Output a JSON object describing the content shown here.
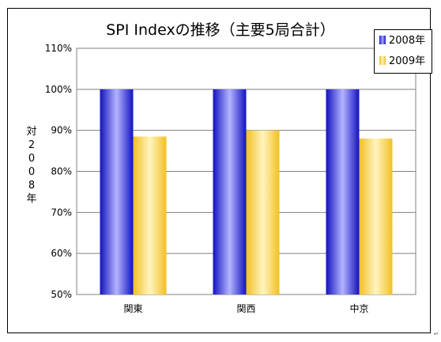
{
  "chart_data": {
    "type": "bar",
    "title": "SPI Indexの推移（主要5局合計）",
    "ylabel": "対2008年",
    "categories": [
      "関東",
      "関西",
      "中京"
    ],
    "series": [
      {
        "name": "2008年",
        "values": [
          100,
          100,
          100
        ],
        "color": "#2a2af0"
      },
      {
        "name": "2009年",
        "values": [
          88.5,
          90,
          88
        ],
        "color": "#ffd94a"
      }
    ],
    "ylim": [
      50,
      110
    ],
    "yticks": [
      50,
      60,
      70,
      80,
      90,
      100,
      110
    ],
    "ytick_labels": [
      "50%",
      "60%",
      "70%",
      "80%",
      "90%",
      "100%",
      "110%"
    ],
    "grid": true,
    "legend_position": "top-right"
  }
}
